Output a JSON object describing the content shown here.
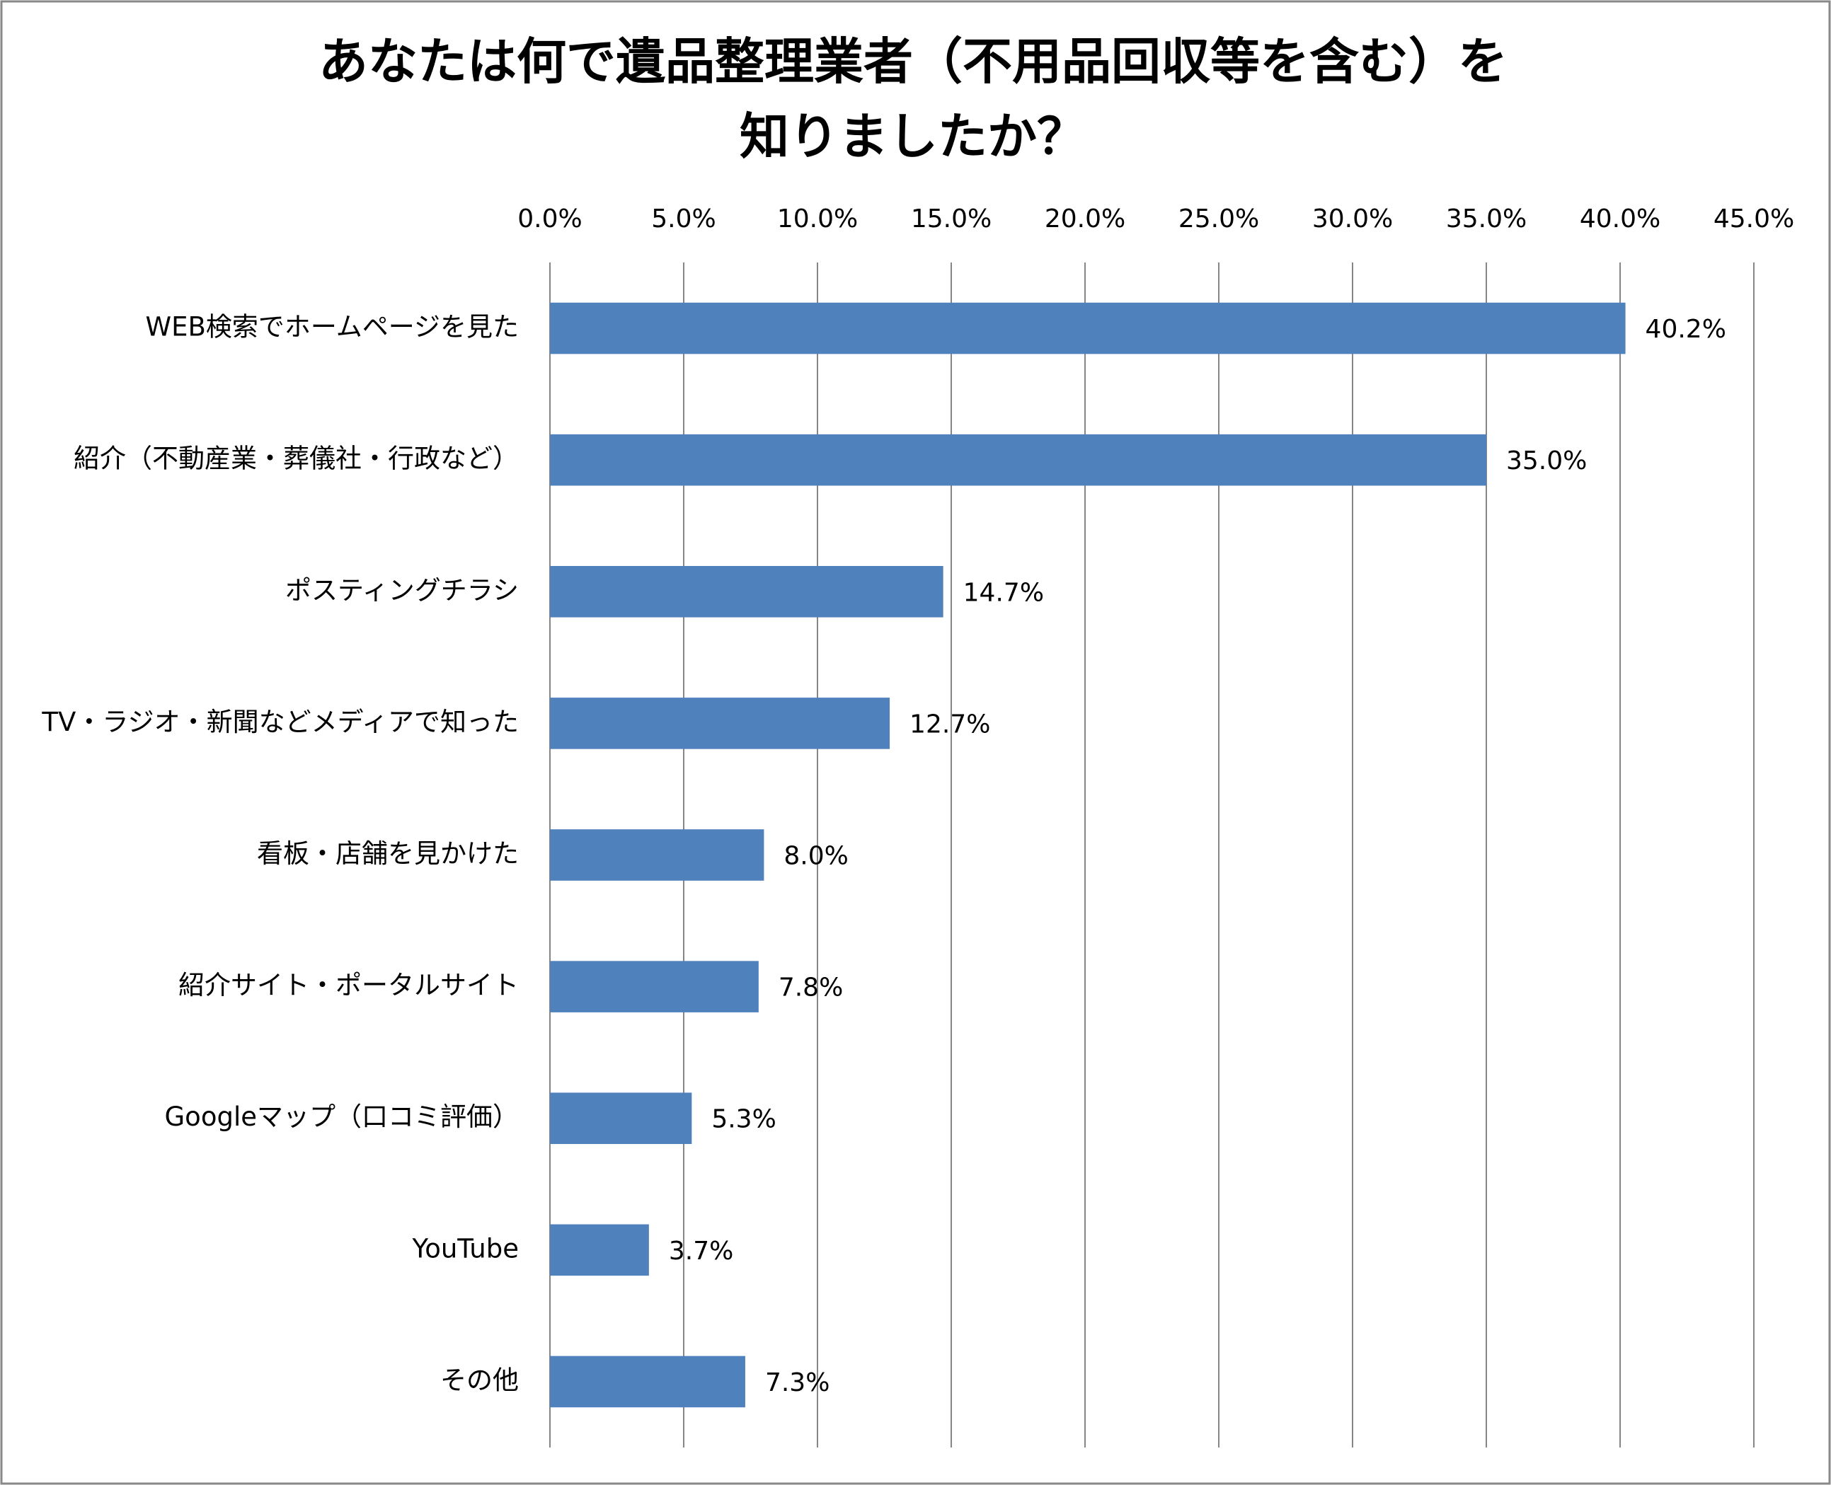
{
  "chart_data": {
    "type": "barh",
    "title": [
      "あなたは何で遺品整理業者（不用品回収等を含む）を",
      "知りましたか？"
    ],
    "categories": [
      "WEB検索でホームページを見た",
      "紹介（不動産業・葬儀社・行政など）",
      "ポスティングチラシ",
      "TV・ラジオ・新聞などメディアで知った",
      "看板・店舗を見かけた",
      "紹介サイト・ポータルサイト",
      "Googleマップ（口コミ評価）",
      "YouTube",
      "その他"
    ],
    "values": [
      40.2,
      35.0,
      14.7,
      12.7,
      8.0,
      7.8,
      5.3,
      3.7,
      7.3
    ],
    "value_labels": [
      "40.2%",
      "35.0%",
      "14.7%",
      "12.7%",
      "8.0%",
      "7.8%",
      "5.3%",
      "3.7%",
      "7.3%"
    ],
    "color": "#4f81bd",
    "xlim": [
      0,
      45
    ],
    "xticks": [
      {
        "value": 0,
        "label": "0.0%"
      },
      {
        "value": 5,
        "label": "5.0%"
      },
      {
        "value": 10,
        "label": "10.0%"
      },
      {
        "value": 15,
        "label": "15.0%"
      },
      {
        "value": 20,
        "label": "20.0%"
      },
      {
        "value": 25,
        "label": "25.0%"
      },
      {
        "value": 30,
        "label": "30.0%"
      },
      {
        "value": 35,
        "label": "35.0%"
      },
      {
        "value": 40,
        "label": "40.0%"
      },
      {
        "value": 45,
        "label": "45.0%"
      }
    ],
    "grid": true
  }
}
